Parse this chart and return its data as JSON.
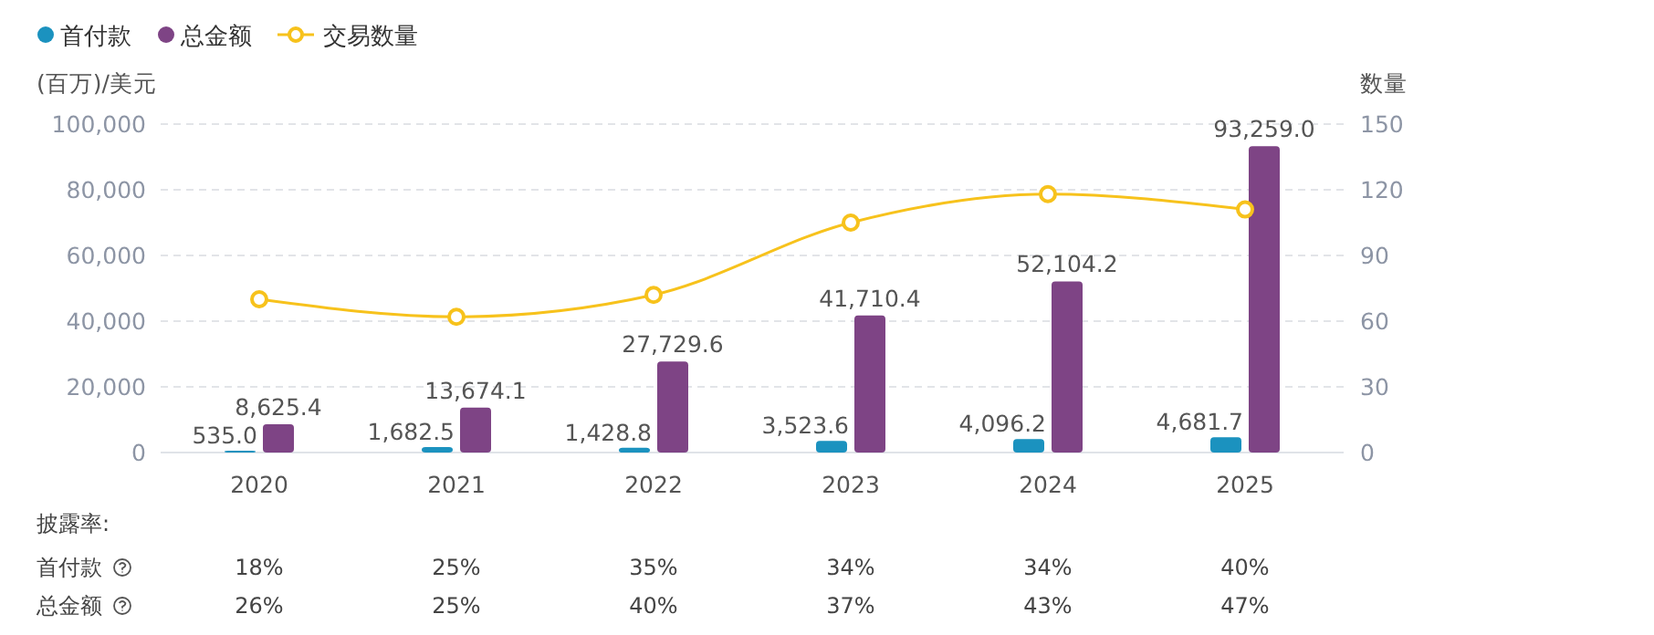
{
  "chart_data": {
    "type": "bar",
    "ylabel": "(百万)/美元",
    "y2label": "数量",
    "categories": [
      "2020",
      "2021",
      "2022",
      "2023",
      "2024",
      "2025"
    ],
    "ylim": [
      0,
      100000
    ],
    "yticks": [
      {
        "value": 0,
        "label": "0"
      },
      {
        "value": 20000,
        "label": "20,000"
      },
      {
        "value": 40000,
        "label": "40,000"
      },
      {
        "value": 60000,
        "label": "60,000"
      },
      {
        "value": 80000,
        "label": "80,000"
      },
      {
        "value": 100000,
        "label": "100,000"
      }
    ],
    "y2lim": [
      0,
      150
    ],
    "y2ticks": [
      0,
      30,
      60,
      90,
      120,
      150
    ],
    "grid": "y",
    "legend": "top left",
    "series": [
      {
        "name": "首付款",
        "color": "#1b92bf",
        "values": [
          535.0,
          1682.5,
          1428.8,
          3523.6,
          4096.2,
          4681.7
        ],
        "value_labels": [
          "535.0",
          "1,682.5",
          "1,428.8",
          "3,523.6",
          "4,096.2",
          "4,681.7"
        ]
      },
      {
        "name": "总金额",
        "color": "#7e4485",
        "values": [
          8625.4,
          13674.1,
          27729.6,
          41710.4,
          52104.2,
          93259.0
        ],
        "value_labels": [
          "8,625.4",
          "13,674.1",
          "27,729.6",
          "41,710.4",
          "52,104.2",
          "93,259.0"
        ]
      },
      {
        "name": "交易数量",
        "type": "line",
        "axis": "y2",
        "color": "#f7c21c",
        "marker": "circle",
        "values": [
          70,
          62,
          72,
          105,
          118,
          111
        ]
      }
    ],
    "annotations": [
      "披露率:",
      "首付款",
      "18%",
      "25%",
      "35%",
      "34%",
      "34%",
      "40%",
      "总金额",
      "26%",
      "25%",
      "40%",
      "37%",
      "43%",
      "47%"
    ]
  }
}
